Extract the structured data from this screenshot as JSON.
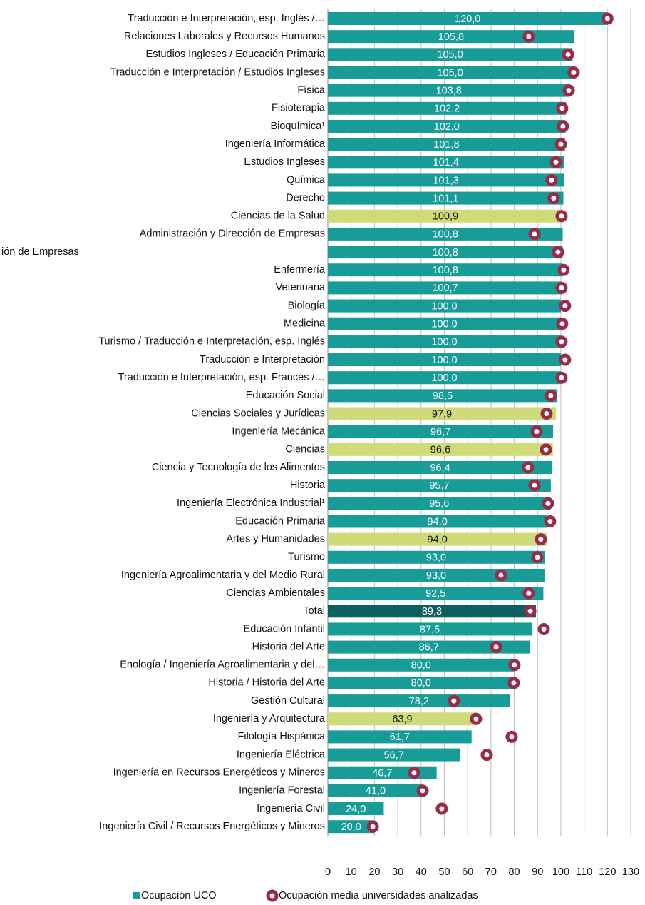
{
  "chart_data": {
    "type": "hbar",
    "categories": [
      "Traducción e Interpretación, esp. Inglés /…",
      "Relaciones Laborales y Recursos Humanos",
      "Estudios Ingleses / Educación Primaria",
      "Traducción e Interpretación / Estudios Ingleses",
      "Física",
      "Fisioterapia",
      "Bioquímica¹",
      "Ingeniería Informática",
      "Estudios Ingleses",
      "Química",
      "Derecho",
      "Ciencias de la Salud",
      "Administración y Dirección de Empresas",
      "ión de Empresas",
      "Enfermería",
      "Veterinaria",
      "Biología",
      "Medicina",
      "Turismo / Traducción e Interpretación, esp. Inglés",
      "Traducción e Interpretación",
      "Traducción e Interpretación, esp. Francés /…",
      "Educación Social",
      "Ciencias Sociales y Jurídicas",
      "Ingeniería Mecánica",
      "Ciencias",
      "Ciencia y Tecnología de los Alimentos",
      "Historia",
      "Ingeniería Electrónica Industrial¹",
      "Educación Primaria",
      "Artes y Humanidades",
      "Turismo",
      "Ingeniería Agroalimentaria y del Medio Rural",
      "Ciencias Ambientales",
      "Total",
      "Educación Infantil",
      "Historia del Arte",
      "Enología  / Ingeniería Agroalimentaria y del…",
      "Historia / Historia del Arte",
      "Gestión Cultural",
      "Ingeniería y Arquitectura",
      "Filología Hispánica",
      "Ingeniería Eléctrica",
      "Ingeniería en Recursos Energéticos y Mineros",
      "Ingeniería Forestal",
      "Ingeniería Civil",
      "Ingeniería Civil / Recursos Energéticos y Mineros"
    ],
    "series": [
      {
        "name": "Ocupación UCO",
        "color": "#179c98",
        "values": [
          120.0,
          105.8,
          105.0,
          105.0,
          103.8,
          102.2,
          102.0,
          101.8,
          101.4,
          101.3,
          101.1,
          100.9,
          100.8,
          100.8,
          100.8,
          100.7,
          100.0,
          100.0,
          100.0,
          100.0,
          100.0,
          98.5,
          97.9,
          96.7,
          96.6,
          96.4,
          95.7,
          95.6,
          94.0,
          94.0,
          93.0,
          93.0,
          92.5,
          89.3,
          87.5,
          86.7,
          80.0,
          80.0,
          78.2,
          63.9,
          61.7,
          56.7,
          46.7,
          41.0,
          24.0,
          20.0
        ],
        "value_labels": [
          "120,0",
          "105,8",
          "105,0",
          "105,0",
          "103,8",
          "102,2",
          "102,0",
          "101,8",
          "101,4",
          "101,3",
          "101,1",
          "100,9",
          "100,8",
          "100,8",
          "100,8",
          "100,7",
          "100,0",
          "100,0",
          "100,0",
          "100,0",
          "100,0",
          "98,5",
          "97,9",
          "96,7",
          "96,6",
          "96,4",
          "95,7",
          "95,6",
          "94,0",
          "94,0",
          "93,0",
          "93,0",
          "92,5",
          "89,3",
          "87,5",
          "86,7",
          "80,0",
          "80,0",
          "78,2",
          "63,9",
          "61,7",
          "56,7",
          "46,7",
          "41,0",
          "24,0",
          "20,0"
        ],
        "bar_colors": [
          "#179c98",
          "#179c98",
          "#179c98",
          "#179c98",
          "#179c98",
          "#179c98",
          "#179c98",
          "#179c98",
          "#179c98",
          "#179c98",
          "#179c98",
          "#cfdb78",
          "#179c98",
          "#179c98",
          "#179c98",
          "#179c98",
          "#179c98",
          "#179c98",
          "#179c98",
          "#179c98",
          "#179c98",
          "#179c98",
          "#cfdb78",
          "#179c98",
          "#cfdb78",
          "#179c98",
          "#179c98",
          "#179c98",
          "#179c98",
          "#cfdb78",
          "#179c98",
          "#179c98",
          "#179c98",
          "#0b5f5f",
          "#179c98",
          "#179c98",
          "#179c98",
          "#179c98",
          "#179c98",
          "#cfdb78",
          "#179c98",
          "#179c98",
          "#179c98",
          "#179c98",
          "#179c98",
          "#179c98"
        ],
        "label_colors": [
          "#fff",
          "#fff",
          "#fff",
          "#fff",
          "#fff",
          "#fff",
          "#fff",
          "#fff",
          "#fff",
          "#fff",
          "#fff",
          "#111",
          "#fff",
          "#fff",
          "#fff",
          "#fff",
          "#fff",
          "#fff",
          "#fff",
          "#fff",
          "#fff",
          "#fff",
          "#111",
          "#fff",
          "#111",
          "#fff",
          "#fff",
          "#fff",
          "#fff",
          "#111",
          "#fff",
          "#fff",
          "#fff",
          "#fff",
          "#fff",
          "#fff",
          "#fff",
          "#fff",
          "#fff",
          "#111",
          "#fff",
          "#fff",
          "#fff",
          "#fff",
          "#fff",
          "#fff"
        ]
      },
      {
        "name": "Ocupación media universidades analizadas",
        "color": "#9b2a47",
        "marker": "circle",
        "values": [
          120.0,
          86.2,
          103.1,
          105.5,
          103.4,
          100.6,
          100.9,
          100.0,
          97.9,
          96.0,
          96.9,
          100.3,
          88.7,
          98.8,
          101.2,
          100.3,
          101.8,
          100.6,
          100.3,
          101.8,
          100.3,
          95.7,
          93.9,
          89.6,
          93.6,
          85.9,
          88.7,
          94.5,
          95.4,
          91.4,
          89.9,
          74.3,
          86.2,
          86.9,
          92.7,
          72.2,
          80.1,
          79.8,
          54.1,
          63.6,
          78.9,
          68.2,
          37.0,
          40.7,
          48.9,
          19.3
        ]
      }
    ],
    "xlim": [
      0,
      130
    ],
    "xticks": [
      0,
      10,
      20,
      30,
      40,
      50,
      60,
      70,
      80,
      90,
      100,
      110,
      120,
      130
    ],
    "grid": true,
    "legend": "bottom"
  }
}
